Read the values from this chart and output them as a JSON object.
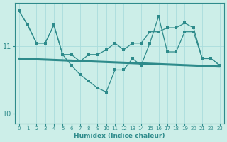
{
  "x": [
    0,
    1,
    2,
    3,
    4,
    5,
    6,
    7,
    8,
    9,
    10,
    11,
    12,
    13,
    14,
    15,
    16,
    17,
    18,
    19,
    20,
    21,
    22,
    23
  ],
  "line1_y": [
    11.53,
    11.32,
    11.05,
    11.05,
    11.32,
    10.88,
    10.88,
    10.78,
    10.88,
    10.88,
    10.95,
    11.05,
    10.95,
    11.05,
    11.05,
    11.22,
    11.22,
    11.28,
    11.28,
    11.35,
    11.28,
    10.82,
    10.82,
    10.72
  ],
  "line2_y": [
    11.53,
    11.32,
    11.05,
    11.05,
    11.32,
    10.88,
    10.72,
    10.58,
    10.48,
    10.38,
    10.32,
    10.65,
    10.65,
    10.82,
    10.72,
    11.05,
    11.45,
    10.92,
    10.92,
    11.22,
    11.22,
    10.82,
    10.82,
    10.72
  ],
  "trend_x": [
    0,
    23
  ],
  "trend_y": [
    10.82,
    10.7
  ],
  "main_color": "#2e8b8b",
  "bg_color": "#cceee8",
  "grid_color": "#aadddd",
  "xlabel": "Humidex (Indice chaleur)",
  "ylim": [
    9.85,
    11.65
  ],
  "xlim": [
    -0.5,
    23.5
  ],
  "yticks": [
    10,
    11
  ],
  "xticks": [
    0,
    1,
    2,
    3,
    4,
    5,
    6,
    7,
    8,
    9,
    10,
    11,
    12,
    13,
    14,
    15,
    16,
    17,
    18,
    19,
    20,
    21,
    22,
    23
  ]
}
